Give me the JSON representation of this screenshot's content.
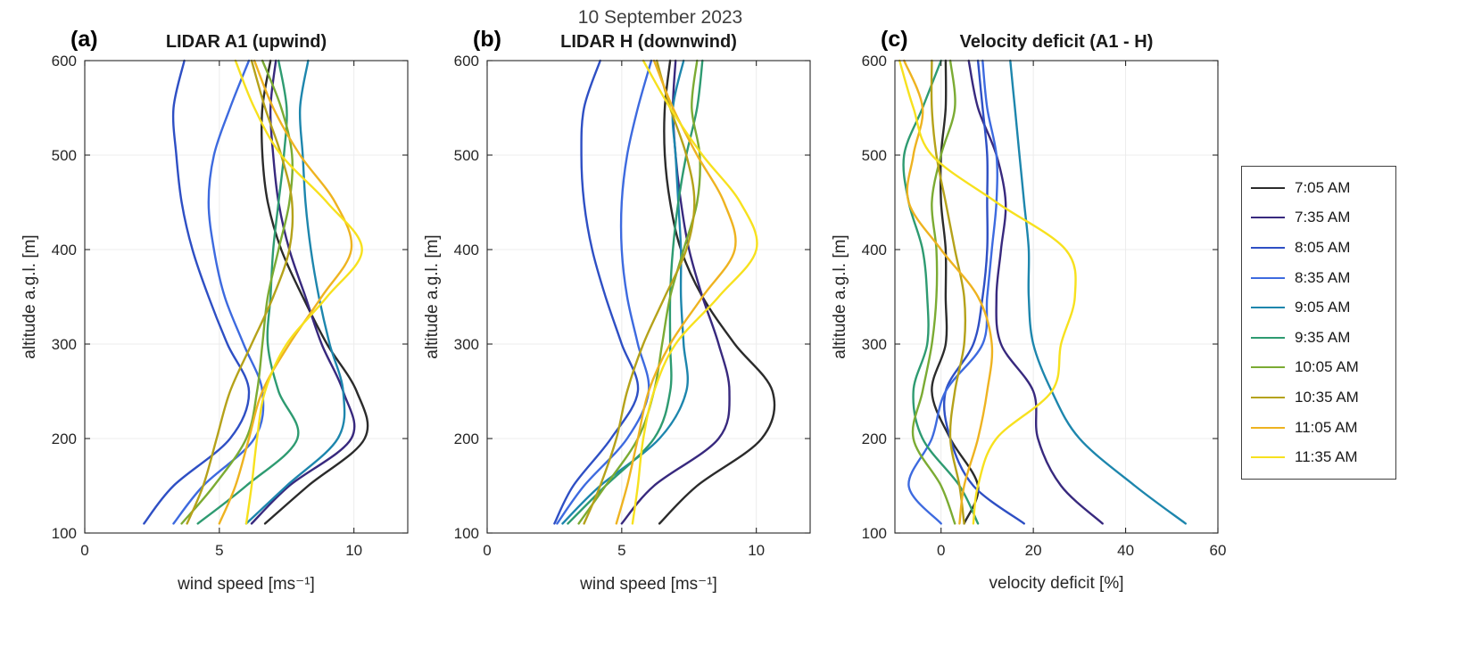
{
  "figure": {
    "date_title": "10 September 2023"
  },
  "colors": {
    "axis": "#262626",
    "grid": "#ececec",
    "background": "#ffffff",
    "tick_label": "#262626"
  },
  "legend": {
    "position": "right-outside",
    "entries": [
      {
        "label": "7:05 AM",
        "color": "#2b2b2b"
      },
      {
        "label": "7:35 AM",
        "color": "#38297e"
      },
      {
        "label": "8:05 AM",
        "color": "#2e4fc4"
      },
      {
        "label": "8:35 AM",
        "color": "#3d6adf"
      },
      {
        "label": "9:05 AM",
        "color": "#1d86ad"
      },
      {
        "label": "9:35 AM",
        "color": "#2e9b71"
      },
      {
        "label": "10:05 AM",
        "color": "#7bab33"
      },
      {
        "label": "10:35 AM",
        "color": "#b5a21a"
      },
      {
        "label": "11:05 AM",
        "color": "#eeb320"
      },
      {
        "label": "11:35 AM",
        "color": "#f7e11e"
      }
    ]
  },
  "chart_data": {
    "type": "line",
    "title": "10 September 2023",
    "ylabel": "altitude a.g.l. [m]",
    "ylim": [
      100,
      600
    ],
    "yticks": [
      100,
      200,
      300,
      400,
      500,
      600
    ],
    "grid": "faint",
    "altitudes": [
      110,
      150,
      200,
      250,
      300,
      350,
      400,
      450,
      500,
      550,
      600
    ],
    "panels": [
      {
        "id": "a",
        "label": "(a)",
        "title": "LIDAR A1 (upwind)",
        "xlabel": "wind speed [ms⁻¹]",
        "xlim": [
          0,
          12
        ],
        "xticks": [
          0,
          5,
          10
        ],
        "series": [
          {
            "name": "7:05 AM",
            "values": [
              6.7,
              8.3,
              10.4,
              10.1,
              9.0,
              8.1,
              7.3,
              6.8,
              6.6,
              6.6,
              6.9
            ]
          },
          {
            "name": "7:35 AM",
            "values": [
              6.2,
              7.6,
              9.9,
              9.6,
              8.8,
              8.2,
              7.6,
              7.2,
              7.0,
              6.9,
              7.1
            ]
          },
          {
            "name": "8:05 AM",
            "values": [
              2.2,
              3.3,
              5.4,
              6.1,
              5.3,
              4.6,
              4.0,
              3.6,
              3.4,
              3.3,
              3.7
            ]
          },
          {
            "name": "8:35 AM",
            "values": [
              3.3,
              4.4,
              6.3,
              6.6,
              5.9,
              5.2,
              4.8,
              4.6,
              4.8,
              5.4,
              6.1
            ]
          },
          {
            "name": "9:05 AM",
            "values": [
              6.0,
              7.5,
              9.4,
              9.6,
              9.1,
              8.7,
              8.4,
              8.2,
              8.1,
              8.0,
              8.3
            ]
          },
          {
            "name": "9:35 AM",
            "values": [
              4.2,
              6.0,
              7.9,
              7.2,
              6.8,
              6.9,
              7.0,
              7.2,
              7.4,
              7.5,
              7.2
            ]
          },
          {
            "name": "10:05 AM",
            "values": [
              3.6,
              4.8,
              6.0,
              6.4,
              6.6,
              6.8,
              7.2,
              7.6,
              7.7,
              7.3,
              6.6
            ]
          },
          {
            "name": "10:35 AM",
            "values": [
              3.8,
              4.4,
              4.9,
              5.4,
              6.2,
              7.0,
              7.6,
              7.7,
              7.3,
              6.7,
              6.2
            ]
          },
          {
            "name": "11:05 AM",
            "values": [
              5.0,
              5.6,
              6.1,
              6.6,
              7.6,
              8.8,
              9.9,
              9.3,
              8.0,
              7.0,
              6.3
            ]
          },
          {
            "name": "11:35 AM",
            "values": [
              6.0,
              6.2,
              6.4,
              6.7,
              7.5,
              9.0,
              10.3,
              9.0,
              7.3,
              6.3,
              5.6
            ]
          }
        ]
      },
      {
        "id": "b",
        "label": "(b)",
        "title": "LIDAR H (downwind)",
        "xlabel": "wind speed [ms⁻¹]",
        "xlim": [
          0,
          12
        ],
        "xticks": [
          0,
          5,
          10
        ],
        "series": [
          {
            "name": "7:05 AM",
            "values": [
              6.4,
              7.8,
              10.2,
              10.6,
              9.2,
              8.0,
              7.2,
              6.8,
              6.6,
              6.6,
              6.8
            ]
          },
          {
            "name": "7:35 AM",
            "values": [
              5.0,
              6.2,
              8.6,
              9.0,
              8.6,
              8.0,
              7.5,
              7.2,
              7.0,
              6.9,
              7.0
            ]
          },
          {
            "name": "8:05 AM",
            "values": [
              2.5,
              3.2,
              4.6,
              5.6,
              5.0,
              4.4,
              3.9,
              3.6,
              3.5,
              3.6,
              4.2
            ]
          },
          {
            "name": "8:35 AM",
            "values": [
              2.6,
              3.6,
              5.2,
              6.0,
              5.6,
              5.2,
              5.0,
              5.0,
              5.2,
              5.6,
              6.1
            ]
          },
          {
            "name": "9:05 AM",
            "values": [
              2.8,
              4.2,
              6.4,
              7.4,
              7.3,
              7.2,
              7.2,
              7.1,
              7.0,
              6.9,
              7.3
            ]
          },
          {
            "name": "9:35 AM",
            "values": [
              3.0,
              4.4,
              6.2,
              6.8,
              6.8,
              6.8,
              6.9,
              7.1,
              7.4,
              7.8,
              8.0
            ]
          },
          {
            "name": "10:05 AM",
            "values": [
              3.4,
              4.4,
              5.6,
              6.2,
              6.5,
              6.8,
              7.3,
              7.8,
              7.9,
              7.6,
              7.8
            ]
          },
          {
            "name": "10:35 AM",
            "values": [
              3.6,
              4.2,
              4.8,
              5.2,
              5.8,
              6.6,
              7.4,
              7.7,
              7.4,
              6.8,
              6.3
            ]
          },
          {
            "name": "11:05 AM",
            "values": [
              4.8,
              5.2,
              5.6,
              6.0,
              6.8,
              8.0,
              9.2,
              8.8,
              7.8,
              6.9,
              6.2
            ]
          },
          {
            "name": "11:35 AM",
            "values": [
              5.4,
              5.6,
              5.8,
              6.2,
              7.0,
              8.6,
              10.0,
              9.4,
              8.0,
              6.8,
              5.8
            ]
          }
        ]
      },
      {
        "id": "c",
        "label": "(c)",
        "title": "Velocity deficit (A1 - H)",
        "xlabel": "velocity deficit [%]",
        "xlim": [
          -10,
          60
        ],
        "xticks": [
          0,
          20,
          40,
          60
        ],
        "series": [
          {
            "name": "7:05 AM",
            "values": [
              5,
              8,
              2,
              -2,
              1,
              1,
              1,
              0,
              0,
              1,
              1
            ]
          },
          {
            "name": "7:35 AM",
            "values": [
              35,
              26,
              21,
              20,
              13,
              12,
              13,
              14,
              12,
              8,
              6
            ]
          },
          {
            "name": "8:05 AM",
            "values": [
              18,
              7,
              2,
              1,
              7,
              9,
              10,
              10,
              10,
              9,
              8
            ]
          },
          {
            "name": "8:35 AM",
            "values": [
              0,
              -7,
              -2,
              1,
              9,
              10,
              11,
              12,
              12,
              10,
              9
            ]
          },
          {
            "name": "9:05 AM",
            "values": [
              53,
              42,
              30,
              24,
              20,
              19,
              19,
              18,
              17,
              16,
              15
            ]
          },
          {
            "name": "9:35 AM",
            "values": [
              8,
              4,
              -4,
              -6,
              -3,
              -3,
              -4,
              -7,
              -8,
              -4,
              0
            ]
          },
          {
            "name": "10:05 AM",
            "values": [
              3,
              0,
              -6,
              -4,
              -2,
              -1,
              -1,
              -2,
              0,
              3,
              2
            ]
          },
          {
            "name": "10:35 AM",
            "values": [
              5,
              4,
              2,
              3,
              5,
              5,
              3,
              1,
              -1,
              -2,
              -2
            ]
          },
          {
            "name": "11:05 AM",
            "values": [
              4,
              5,
              8,
              10,
              11,
              8,
              0,
              -7,
              -6,
              -4,
              -8
            ]
          },
          {
            "name": "11:35 AM",
            "values": [
              7,
              8,
              12,
              24,
              26,
              29,
              27,
              12,
              -2,
              -6,
              -9
            ]
          }
        ]
      }
    ]
  }
}
